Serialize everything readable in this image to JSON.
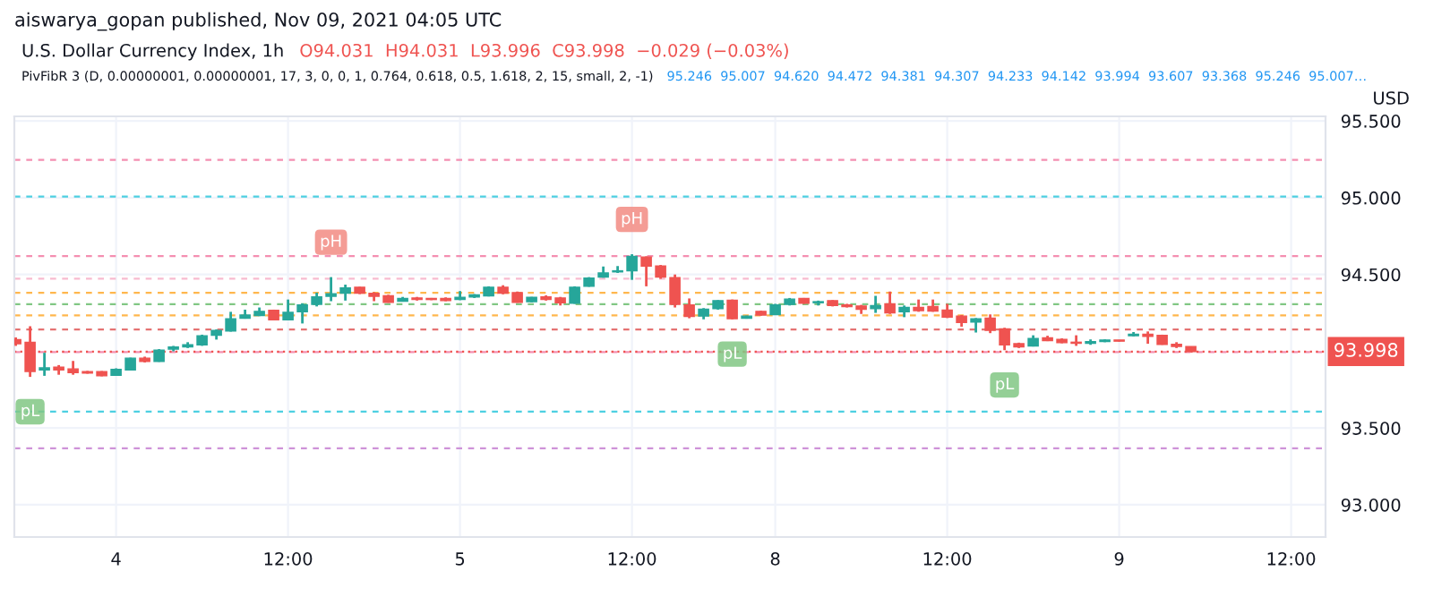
{
  "chart_data": {
    "type": "candlestick",
    "title": "U.S. Dollar Currency Index, 1h",
    "subtitle": "PivFibR 3 (D, 0.00000001, 0.00000001, 17, 3, 0, 0, 1, 0.764, 0.618, 0.5, 1.618, 2, 15, small, 2, -1)",
    "ylabel": "USD",
    "annotations": [
      "aiswarya_gopan published, Nov 09, 2021 04:05 UTC",
      "O94.031  H94.031  L93.996  C93.998  −0.029 (−0.03%)",
      "95.246  95.007  94.620  94.472  94.381  94.307  94.233  94.142  93.994  93.607  93.368  95.246  95.007…",
      {
        "text": "pL",
        "y": 93.833
      },
      {
        "text": "pH",
        "y": 94.483
      },
      {
        "text": "pH",
        "y": 94.632
      },
      {
        "text": "pL",
        "y": 94.208
      },
      {
        "text": "pL",
        "y": 94.007
      }
    ],
    "categories": [
      null,
      null,
      null,
      null,
      null,
      null,
      null,
      "4",
      null,
      null,
      null,
      null,
      null,
      null,
      null,
      null,
      null,
      null,
      null,
      "12:00",
      null,
      null,
      null,
      null,
      null,
      null,
      null,
      null,
      null,
      null,
      null,
      "5",
      null,
      null,
      null,
      null,
      null,
      null,
      null,
      null,
      null,
      null,
      null,
      "12:00",
      null,
      null,
      null,
      null,
      null,
      null,
      null,
      null,
      null,
      "8",
      null,
      null,
      null,
      null,
      null,
      null,
      null,
      null,
      null,
      null,
      null,
      "12:00",
      null,
      null,
      null,
      null,
      null,
      null,
      null,
      null,
      null,
      null,
      null,
      "9",
      null,
      null,
      null,
      null,
      null,
      null,
      null,
      null,
      null,
      null,
      null,
      "12:00"
    ],
    "ohlc": [
      [
        94.076,
        94.09,
        94.035,
        94.049
      ],
      [
        94.059,
        94.163,
        93.833,
        93.868
      ],
      [
        93.878,
        93.99,
        93.84,
        93.892
      ],
      [
        93.896,
        93.91,
        93.847,
        93.878
      ],
      [
        93.885,
        93.937,
        93.847,
        93.861
      ],
      [
        93.868,
        93.872,
        93.854,
        93.858
      ],
      [
        93.868,
        93.871,
        93.837,
        93.84
      ],
      [
        93.844,
        93.889,
        93.84,
        93.882
      ],
      [
        93.878,
        93.958,
        93.875,
        93.955
      ],
      [
        93.955,
        93.965,
        93.927,
        93.934
      ],
      [
        93.934,
        94.014,
        93.931,
        94.007
      ],
      [
        94.014,
        94.035,
        94.0,
        94.028
      ],
      [
        94.028,
        94.059,
        94.021,
        94.042
      ],
      [
        94.042,
        94.108,
        94.035,
        94.101
      ],
      [
        94.104,
        94.142,
        94.076,
        94.135
      ],
      [
        94.132,
        94.257,
        94.128,
        94.212
      ],
      [
        94.215,
        94.271,
        94.212,
        94.236
      ],
      [
        94.233,
        94.285,
        94.229,
        94.26
      ],
      [
        94.267,
        94.271,
        94.201,
        94.205
      ],
      [
        94.205,
        94.337,
        94.201,
        94.253
      ],
      [
        94.257,
        94.312,
        94.181,
        94.302
      ],
      [
        94.306,
        94.382,
        94.292,
        94.354
      ],
      [
        94.358,
        94.483,
        94.326,
        94.375
      ],
      [
        94.378,
        94.434,
        94.33,
        94.413
      ],
      [
        94.417,
        94.42,
        94.372,
        94.378
      ],
      [
        94.378,
        94.385,
        94.326,
        94.358
      ],
      [
        94.361,
        94.368,
        94.316,
        94.319
      ],
      [
        94.326,
        94.354,
        94.323,
        94.344
      ],
      [
        94.347,
        94.354,
        94.33,
        94.337
      ],
      [
        94.344,
        94.347,
        94.333,
        94.337
      ],
      [
        94.344,
        94.351,
        94.326,
        94.33
      ],
      [
        94.337,
        94.392,
        94.333,
        94.351
      ],
      [
        94.354,
        94.372,
        94.347,
        94.368
      ],
      [
        94.361,
        94.423,
        94.357,
        94.417
      ],
      [
        94.417,
        94.43,
        94.371,
        94.378
      ],
      [
        94.382,
        94.389,
        94.316,
        94.319
      ],
      [
        94.323,
        94.354,
        94.319,
        94.351
      ],
      [
        94.354,
        94.364,
        94.33,
        94.337
      ],
      [
        94.347,
        94.354,
        94.298,
        94.316
      ],
      [
        94.312,
        94.423,
        94.309,
        94.417
      ],
      [
        94.423,
        94.483,
        94.42,
        94.476
      ],
      [
        94.483,
        94.552,
        94.479,
        94.51
      ],
      [
        94.517,
        94.555,
        94.51,
        94.524
      ],
      [
        94.524,
        94.632,
        94.465,
        94.618
      ],
      [
        94.614,
        94.618,
        94.423,
        94.555
      ],
      [
        94.555,
        94.562,
        94.472,
        94.483
      ],
      [
        94.479,
        94.5,
        94.285,
        94.305
      ],
      [
        94.302,
        94.344,
        94.215,
        94.226
      ],
      [
        94.229,
        94.281,
        94.208,
        94.274
      ],
      [
        94.278,
        94.333,
        94.271,
        94.33
      ],
      [
        94.333,
        94.337,
        94.208,
        94.212
      ],
      [
        94.215,
        94.232,
        94.212,
        94.229
      ],
      [
        94.26,
        94.264,
        94.232,
        94.236
      ],
      [
        94.239,
        94.309,
        94.236,
        94.302
      ],
      [
        94.305,
        94.347,
        94.298,
        94.34
      ],
      [
        94.344,
        94.347,
        94.309,
        94.312
      ],
      [
        94.316,
        94.33,
        94.298,
        94.323
      ],
      [
        94.33,
        94.333,
        94.292,
        94.298
      ],
      [
        94.302,
        94.309,
        94.285,
        94.291
      ],
      [
        94.295,
        94.302,
        94.243,
        94.274
      ],
      [
        94.278,
        94.361,
        94.25,
        94.298
      ],
      [
        94.309,
        94.389,
        94.243,
        94.25
      ],
      [
        94.257,
        94.298,
        94.222,
        94.285
      ],
      [
        94.285,
        94.337,
        94.257,
        94.264
      ],
      [
        94.292,
        94.337,
        94.257,
        94.261
      ],
      [
        94.268,
        94.309,
        94.216,
        94.223
      ],
      [
        94.229,
        94.236,
        94.16,
        94.188
      ],
      [
        94.191,
        94.216,
        94.122,
        94.212
      ],
      [
        94.215,
        94.24,
        94.118,
        94.136
      ],
      [
        94.146,
        94.153,
        94.007,
        94.042
      ],
      [
        94.049,
        94.056,
        94.021,
        94.028
      ],
      [
        94.035,
        94.104,
        94.031,
        94.083
      ],
      [
        94.087,
        94.101,
        94.066,
        94.07
      ],
      [
        94.077,
        94.084,
        94.052,
        94.056
      ],
      [
        94.059,
        94.104,
        94.035,
        94.052
      ],
      [
        94.052,
        94.077,
        94.042,
        94.063
      ],
      [
        94.063,
        94.077,
        94.059,
        94.073
      ],
      [
        94.073,
        94.073,
        94.063,
        94.066
      ],
      [
        94.101,
        94.125,
        94.097,
        94.111
      ],
      [
        94.111,
        94.129,
        94.049,
        94.097
      ],
      [
        94.104,
        94.108,
        94.042,
        94.045
      ],
      [
        94.045,
        94.059,
        94.021,
        94.031
      ],
      [
        94.031,
        94.031,
        93.996,
        93.998
      ],
      null,
      null,
      null,
      null,
      null,
      null,
      null
    ],
    "colors": [
      "#ef5350",
      "#ef5350",
      "#26a69a",
      "#ef5350",
      "#ef5350",
      "#ef5350",
      "#ef5350",
      "#26a69a",
      "#26a69a",
      "#ef5350",
      "#26a69a",
      "#26a69a",
      "#26a69a",
      "#26a69a",
      "#26a69a",
      "#26a69a",
      "#26a69a",
      "#26a69a",
      "#ef5350",
      "#26a69a",
      "#26a69a",
      "#26a69a",
      "#26a69a",
      "#26a69a",
      "#ef5350",
      "#ef5350",
      "#ef5350",
      "#26a69a",
      "#ef5350",
      "#ef5350",
      "#ef5350",
      "#26a69a",
      "#26a69a",
      "#26a69a",
      "#ef5350",
      "#ef5350",
      "#26a69a",
      "#ef5350",
      "#ef5350",
      "#26a69a",
      "#26a69a",
      "#26a69a",
      "#26a69a",
      "#26a69a",
      "#ef5350",
      "#ef5350",
      "#ef5350",
      "#ef5350",
      "#26a69a",
      "#26a69a",
      "#ef5350",
      "#26a69a",
      "#ef5350",
      "#26a69a",
      "#26a69a",
      "#ef5350",
      "#26a69a",
      "#ef5350",
      "#ef5350",
      "#ef5350",
      "#26a69a",
      "#ef5350",
      "#26a69a",
      "#ef5350",
      "#ef5350",
      "#ef5350",
      "#ef5350",
      "#26a69a",
      "#ef5350",
      "#ef5350",
      "#ef5350",
      "#26a69a",
      "#ef5350",
      "#ef5350",
      "#ef5350",
      "#26a69a",
      "#26a69a",
      "#ef5350",
      "#26a69a",
      "#ef5350",
      "#ef5350",
      "#ef5350",
      "#ef5350",
      null,
      null,
      null,
      null,
      null,
      null,
      null
    ],
    "ylim": [
      92.79,
      95.53
    ],
    "yticks": [
      {
        "value": 93,
        "label": "93.000"
      },
      {
        "value": 93.5,
        "label": "93.500"
      },
      {
        "value": 94.5,
        "label": "94.500"
      },
      {
        "value": 95,
        "label": "95.000"
      },
      {
        "value": 95.5,
        "label": "95.500"
      }
    ],
    "grid": true,
    "line_style": "dashed",
    "ref_lines": [
      {
        "axis": "y",
        "value": 95.246,
        "color": "#f48fb1"
      },
      {
        "axis": "y",
        "value": 95.007,
        "color": "#4dd0e1"
      },
      {
        "axis": "y",
        "value": 94.62,
        "color": "#f48fb1"
      },
      {
        "axis": "y",
        "value": 94.472,
        "color": "#f8bbd0"
      },
      {
        "axis": "y",
        "value": 94.381,
        "color": "#ffb74d"
      },
      {
        "axis": "y",
        "value": 94.307,
        "color": "#81c784"
      },
      {
        "axis": "y",
        "value": 94.233,
        "color": "#ffb74d"
      },
      {
        "axis": "y",
        "value": 94.142,
        "color": "#e57373"
      },
      {
        "axis": "y",
        "value": 93.994,
        "color": "#f48fb1"
      },
      {
        "axis": "y",
        "value": 93.607,
        "color": "#4dd0e1"
      },
      {
        "axis": "y",
        "value": 93.368,
        "color": "#ce93d8"
      },
      {
        "axis": "y",
        "value": 93.998,
        "label": "93.998",
        "color": "#ef5350",
        "line_style": "dotted"
      }
    ]
  }
}
